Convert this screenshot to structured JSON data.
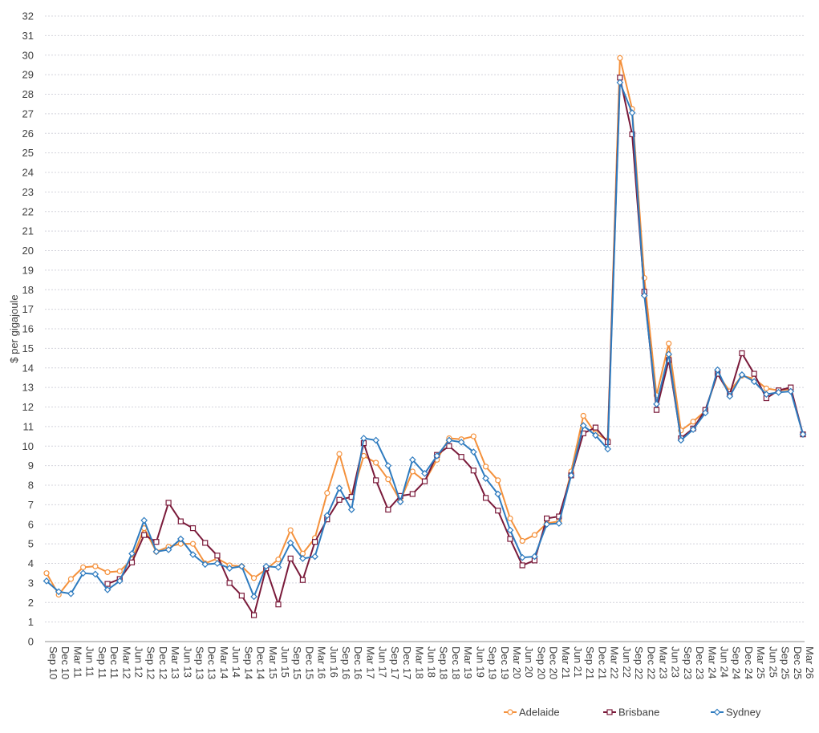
{
  "chart_data": {
    "type": "line",
    "title": "",
    "xlabel": "",
    "ylabel": "$ per gigajoule",
    "ylim": [
      0,
      32
    ],
    "yticks": [
      0,
      1,
      2,
      3,
      4,
      5,
      6,
      7,
      8,
      9,
      10,
      11,
      12,
      13,
      14,
      15,
      16,
      17,
      18,
      19,
      20,
      21,
      22,
      23,
      24,
      25,
      26,
      27,
      28,
      29,
      30,
      31,
      32
    ],
    "grid": true,
    "legend_position": "bottom-right",
    "categories": [
      "Sep 10",
      "Dec 10",
      "Mar 11",
      "Jun 11",
      "Sep 11",
      "Dec 11",
      "Mar 12",
      "Jun 12",
      "Sep 12",
      "Dec 12",
      "Mar 13",
      "Jun 13",
      "Sep 13",
      "Dec 13",
      "Mar 14",
      "Jun 14",
      "Sep 14",
      "Dec 14",
      "Mar 15",
      "Jun 15",
      "Sep 15",
      "Dec 15",
      "Mar 16",
      "Jun 16",
      "Sep 16",
      "Dec 16",
      "Mar 17",
      "Jun 17",
      "Sep 17",
      "Dec 17",
      "Mar 18",
      "Jun 18",
      "Sep 18",
      "Dec 18",
      "Mar 19",
      "Jun 19",
      "Sep 19",
      "Dec 19",
      "Mar 20",
      "Jun 20",
      "Sep 20",
      "Dec 20",
      "Mar 21",
      "Jun 21",
      "Sep 21",
      "Dec 21",
      "Mar 22",
      "Jun 22",
      "Sep 22",
      "Dec 22",
      "Mar 23",
      "Jun 23",
      "Sep 23",
      "Dec 23",
      "Mar 24",
      "Jun 24",
      "Sep 24",
      "Dec 24",
      "Mar 25",
      "Jun 25",
      "Sep 25",
      "Dec 25",
      "Mar 26"
    ],
    "series": [
      {
        "name": "Adelaide",
        "color": "#f4913c",
        "marker": "circle",
        "values": [
          3.5,
          2.4,
          3.2,
          3.8,
          3.85,
          3.55,
          3.6,
          4.2,
          5.8,
          4.6,
          4.85,
          5.0,
          5.0,
          4.0,
          4.25,
          3.9,
          3.85,
          3.25,
          3.7,
          4.2,
          5.7,
          4.5,
          5.3,
          7.6,
          9.6,
          7.4,
          9.5,
          9.15,
          8.3,
          7.2,
          8.7,
          8.2,
          9.3,
          10.4,
          10.35,
          10.5,
          8.95,
          8.25,
          6.3,
          5.15,
          5.45,
          6.05,
          6.15,
          8.7,
          11.55,
          10.65,
          10.3,
          29.85,
          27.25,
          18.6,
          12.6,
          15.25,
          10.8,
          11.25,
          11.8,
          13.7,
          12.8,
          13.6,
          13.45,
          12.95,
          12.85,
          12.9,
          10.6
        ]
      },
      {
        "name": "Brisbane",
        "color": "#7a1a3a",
        "marker": "square",
        "values": [
          null,
          null,
          null,
          null,
          null,
          2.95,
          3.2,
          4.05,
          5.45,
          5.1,
          7.1,
          6.15,
          5.8,
          5.05,
          4.4,
          3.0,
          2.35,
          1.35,
          3.75,
          1.9,
          4.25,
          3.15,
          5.1,
          6.25,
          7.25,
          7.4,
          10.15,
          8.25,
          6.75,
          7.45,
          7.55,
          8.2,
          9.55,
          10.0,
          9.45,
          8.75,
          7.35,
          6.7,
          5.25,
          3.9,
          4.15,
          6.3,
          6.4,
          8.5,
          10.65,
          10.95,
          10.2,
          28.85,
          25.95,
          17.9,
          11.85,
          14.4,
          10.4,
          10.9,
          11.85,
          13.7,
          12.65,
          14.75,
          13.7,
          12.45,
          12.85,
          13.0,
          10.6
        ]
      },
      {
        "name": "Sydney",
        "color": "#2e7bbf",
        "marker": "diamond",
        "values": [
          3.1,
          2.55,
          2.45,
          3.5,
          3.45,
          2.65,
          3.1,
          4.5,
          6.2,
          4.6,
          4.7,
          5.25,
          4.45,
          3.95,
          4.0,
          3.75,
          3.85,
          2.3,
          3.85,
          3.8,
          5.05,
          4.25,
          4.35,
          6.45,
          7.85,
          6.75,
          10.4,
          10.3,
          9.0,
          7.15,
          9.3,
          8.6,
          9.5,
          10.3,
          10.2,
          9.7,
          8.35,
          7.55,
          5.7,
          4.3,
          4.35,
          6.0,
          6.05,
          8.5,
          11.05,
          10.55,
          9.85,
          28.6,
          27.05,
          17.7,
          12.15,
          14.7,
          10.3,
          10.85,
          11.7,
          13.9,
          12.55,
          13.65,
          13.3,
          12.65,
          12.75,
          12.8,
          10.6
        ]
      }
    ]
  }
}
